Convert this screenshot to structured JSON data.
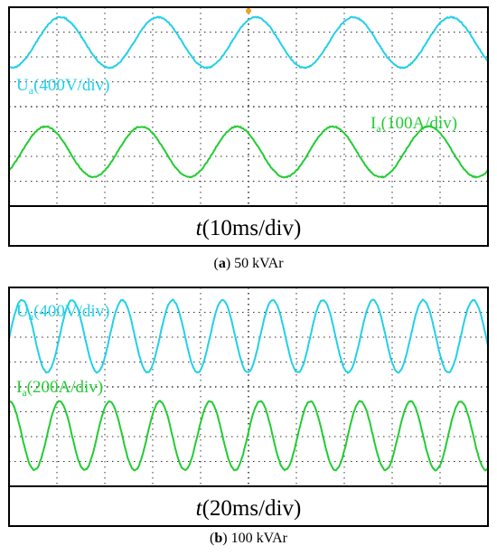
{
  "panels": [
    {
      "voltage_label": {
        "symbol": "U",
        "subscript": "a",
        "scale": "(400V/div)"
      },
      "current_label": {
        "symbol": "I",
        "subscript": "a",
        "scale": "(100A/div)"
      },
      "time_label": {
        "symbol": "t",
        "scale": "(10ms/div)"
      },
      "caption": {
        "open": "(",
        "letter": "a",
        "text": ") 50 kVAr"
      }
    },
    {
      "voltage_label": {
        "symbol": "U",
        "subscript": "a",
        "scale": "(400V/div)"
      },
      "current_label": {
        "symbol": "I",
        "subscript": "a",
        "scale": "(200A/div)"
      },
      "time_label": {
        "symbol": "t",
        "scale": "(20ms/div)"
      },
      "caption": {
        "open": "(",
        "letter": "b",
        "text": ") 100 kVAr"
      }
    }
  ]
}
